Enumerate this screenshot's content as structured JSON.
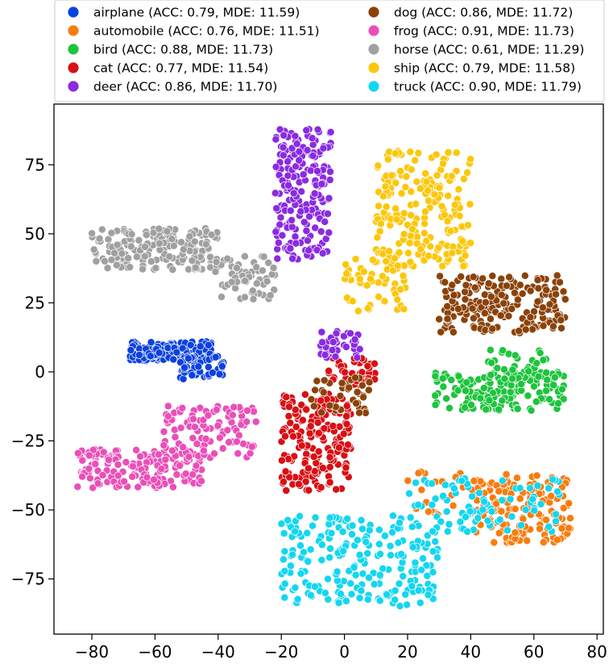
{
  "chart_data": {
    "type": "scatter",
    "title": "",
    "xlabel": "",
    "ylabel": "",
    "xlim": [
      -92,
      82
    ],
    "ylim": [
      -95,
      97
    ],
    "xticks": [
      -80,
      -60,
      -40,
      -20,
      0,
      20,
      40,
      60,
      80
    ],
    "yticks": [
      -75,
      -50,
      -25,
      0,
      25,
      50,
      75
    ],
    "xtick_labels": [
      "−80",
      "−60",
      "−40",
      "−20",
      "0",
      "20",
      "40",
      "60",
      "80"
    ],
    "ytick_labels": [
      "−75",
      "−50",
      "−25",
      "0",
      "25",
      "50",
      "75"
    ],
    "grid": false,
    "legend_location": "top",
    "series": [
      {
        "name": "airplane",
        "label": "airplane (ACC: 0.79, MDE: 11.59)",
        "color": "#0b41e0",
        "clusters": [
          {
            "x": [
              -68,
              -42
            ],
            "y": [
              4,
              11
            ],
            "n": 220
          },
          {
            "x": [
              -52,
              -38
            ],
            "y": [
              -3,
              6
            ],
            "n": 60
          }
        ]
      },
      {
        "name": "automobile",
        "label": "automobile (ACC: 0.76, MDE: 11.51)",
        "color": "#f97c0e",
        "clusters": [
          {
            "x": [
              40,
              72
            ],
            "y": [
              -62,
              -37
            ],
            "n": 150
          },
          {
            "x": [
              20,
              45
            ],
            "y": [
              -52,
              -36
            ],
            "n": 25
          }
        ]
      },
      {
        "name": "bird",
        "label": "bird (ACC: 0.88, MDE: 11.73)",
        "color": "#1ec43c",
        "clusters": [
          {
            "x": [
              28,
              70
            ],
            "y": [
              -14,
              0
            ],
            "n": 160
          },
          {
            "x": [
              45,
              65
            ],
            "y": [
              -5,
              8
            ],
            "n": 40
          }
        ]
      },
      {
        "name": "cat",
        "label": "cat (ACC: 0.77, MDE: 11.54)",
        "color": "#d90f14",
        "clusters": [
          {
            "x": [
              -20,
              2
            ],
            "y": [
              -43,
              -8
            ],
            "n": 200
          },
          {
            "x": [
              -5,
              10
            ],
            "y": [
              -5,
              5
            ],
            "n": 40
          }
        ]
      },
      {
        "name": "deer",
        "label": "deer (ACC: 0.86, MDE: 11.70)",
        "color": "#8a2be2",
        "clusters": [
          {
            "x": [
              -22,
              -4
            ],
            "y": [
              40,
              88
            ],
            "n": 200
          },
          {
            "x": [
              -8,
              5
            ],
            "y": [
              5,
              15
            ],
            "n": 40
          }
        ]
      },
      {
        "name": "dog",
        "label": "dog (ACC: 0.86, MDE: 11.72)",
        "color": "#8b4208",
        "clusters": [
          {
            "x": [
              30,
              70
            ],
            "y": [
              14,
              35
            ],
            "n": 200
          },
          {
            "x": [
              -12,
              8
            ],
            "y": [
              -15,
              -2
            ],
            "n": 40
          }
        ]
      },
      {
        "name": "frog",
        "label": "frog (ACC: 0.91, MDE: 11.73)",
        "color": "#ea4fb9",
        "clusters": [
          {
            "x": [
              -85,
              -45
            ],
            "y": [
              -42,
              -28
            ],
            "n": 150
          },
          {
            "x": [
              -58,
              -28
            ],
            "y": [
              -32,
              -12
            ],
            "n": 100
          }
        ]
      },
      {
        "name": "horse",
        "label": "horse (ACC: 0.61, MDE: 11.29)",
        "color": "#a0a0a0",
        "clusters": [
          {
            "x": [
              -80,
              -40
            ],
            "y": [
              37,
              52
            ],
            "n": 180
          },
          {
            "x": [
              -42,
              -22
            ],
            "y": [
              26,
              42
            ],
            "n": 60
          }
        ]
      },
      {
        "name": "ship",
        "label": "ship (ACC: 0.79, MDE: 11.58)",
        "color": "#fcc70a",
        "clusters": [
          {
            "x": [
              10,
              40
            ],
            "y": [
              38,
              80
            ],
            "n": 200
          },
          {
            "x": [
              0,
              20
            ],
            "y": [
              22,
              42
            ],
            "n": 50
          }
        ]
      },
      {
        "name": "truck",
        "label": "truck (ACC: 0.90, MDE: 11.79)",
        "color": "#14d6f0",
        "clusters": [
          {
            "x": [
              -20,
              30
            ],
            "y": [
              -85,
              -52
            ],
            "n": 220
          },
          {
            "x": [
              20,
              70
            ],
            "y": [
              -58,
              -38
            ],
            "n": 80
          }
        ]
      }
    ]
  }
}
